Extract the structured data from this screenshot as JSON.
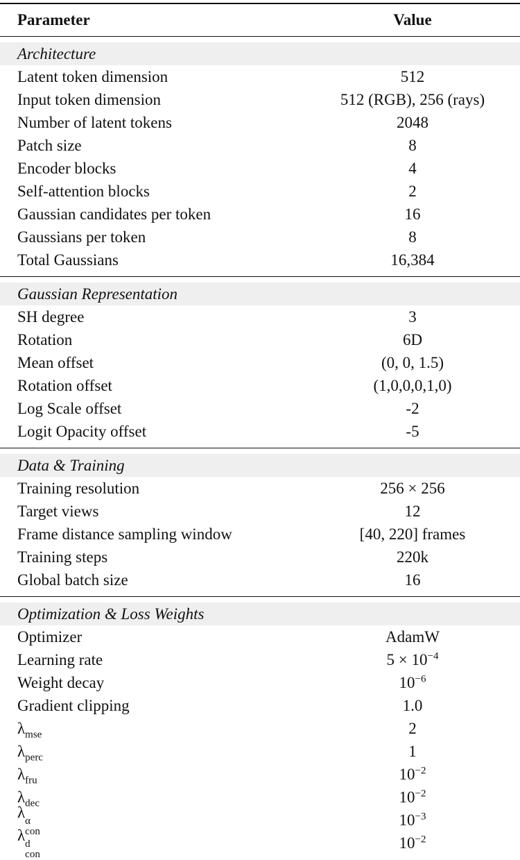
{
  "table": {
    "header": [
      "Parameter",
      "Value"
    ],
    "sections": [
      {
        "title": "Architecture",
        "rows": [
          [
            "Latent token dimension",
            "512"
          ],
          [
            "Input token dimension",
            "512 (RGB), 256 (rays)"
          ],
          [
            "Number of latent tokens",
            "2048"
          ],
          [
            "Patch size",
            "8"
          ],
          [
            "Encoder blocks",
            "4"
          ],
          [
            "Self-attention blocks",
            "2"
          ],
          [
            "Gaussian candidates per token",
            "16"
          ],
          [
            "Gaussians per token",
            "8"
          ],
          [
            "Total Gaussians",
            "16,384"
          ]
        ]
      },
      {
        "title": "Gaussian Representation",
        "rows": [
          [
            "SH degree",
            "3"
          ],
          [
            "Rotation",
            "6D"
          ],
          [
            "Mean offset",
            "(0, 0, 1.5)"
          ],
          [
            "Rotation offset",
            "(1,0,0,0,1,0)"
          ],
          [
            "Log Scale offset",
            "-2"
          ],
          [
            "Logit Opacity offset",
            "-5"
          ]
        ]
      },
      {
        "title": "Data & Training",
        "rows": [
          [
            "Training resolution",
            "256 × 256"
          ],
          [
            "Target views",
            "12"
          ],
          [
            "Frame distance sampling window",
            "[40, 220] frames"
          ],
          [
            "Training steps",
            "220k"
          ],
          [
            "Global batch size",
            "16"
          ]
        ]
      },
      {
        "title": "Optimization & Loss Weights",
        "rows": [
          [
            "Optimizer",
            "AdamW"
          ],
          [
            "Learning rate",
            {
              "base": "5 × 10",
              "sup": "−4"
            }
          ],
          [
            "Weight decay",
            {
              "base": "10",
              "sup": "−6"
            }
          ],
          [
            "Gradient clipping",
            "1.0"
          ],
          [
            {
              "base": "λ",
              "sub": "mse"
            },
            "2"
          ],
          [
            {
              "base": "λ",
              "sub": "perc"
            },
            "1"
          ],
          [
            {
              "base": "λ",
              "sub": "fru"
            },
            {
              "base": "10",
              "sup": "−2"
            }
          ],
          [
            {
              "base": "λ",
              "sub": "dec"
            },
            {
              "base": "10",
              "sup": "−2"
            }
          ],
          [
            {
              "base": "λ",
              "sub": "con",
              "sup": "α"
            },
            {
              "base": "10",
              "sup": "−3"
            }
          ],
          [
            {
              "base": "λ",
              "sub": "con",
              "sup": "d"
            },
            {
              "base": "10",
              "sup": "−2"
            }
          ]
        ]
      }
    ]
  }
}
